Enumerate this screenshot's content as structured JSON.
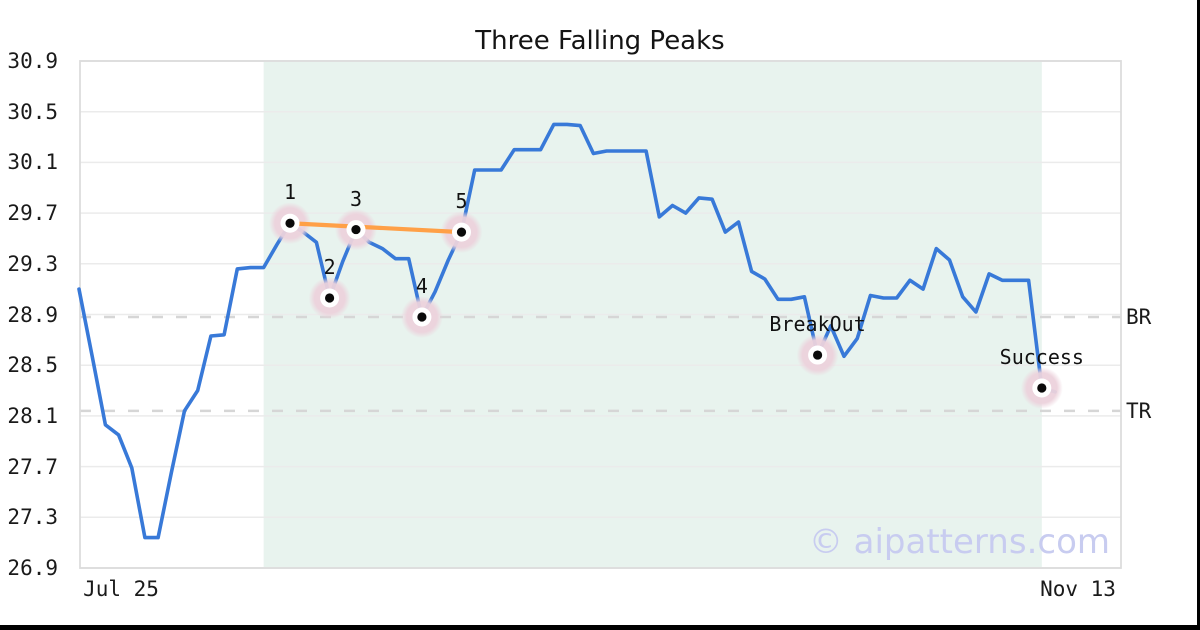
{
  "page": {
    "watermark": "© aipatterns.com"
  },
  "chart_data": {
    "type": "line",
    "title": "Three Falling Peaks",
    "xlabel": "",
    "ylabel": "",
    "grid": "horizontal",
    "x_axis": {
      "tick_labels": [
        "Jul 25",
        "Nov 13"
      ]
    },
    "y_axis": {
      "range": [
        26.9,
        30.9
      ],
      "ticks": [
        26.9,
        27.3,
        27.7,
        28.1,
        28.5,
        28.9,
        29.3,
        29.7,
        30.1,
        30.5,
        30.9
      ]
    },
    "series": [
      {
        "name": "price",
        "color": "#3879d8",
        "values": [
          29.1,
          28.57,
          28.03,
          27.95,
          27.69,
          27.14,
          27.14,
          27.65,
          28.14,
          28.3,
          28.73,
          28.74,
          29.26,
          29.27,
          29.27,
          29.45,
          29.62,
          29.55,
          29.47,
          29.03,
          29.32,
          29.57,
          29.47,
          29.42,
          29.34,
          29.34,
          28.88,
          29.08,
          29.33,
          29.55,
          30.04,
          30.04,
          30.04,
          30.2,
          30.2,
          30.2,
          30.4,
          30.4,
          30.39,
          30.17,
          30.19,
          30.19,
          30.19,
          30.19,
          29.67,
          29.76,
          29.7,
          29.82,
          29.81,
          29.55,
          29.63,
          29.24,
          29.18,
          29.02,
          29.02,
          29.04,
          28.58,
          28.81,
          28.57,
          28.71,
          29.05,
          29.03,
          29.03,
          29.17,
          29.1,
          29.42,
          29.33,
          29.04,
          28.92,
          29.22,
          29.17,
          29.17,
          29.17,
          28.32,
          28.29
        ]
      }
    ],
    "markers": [
      {
        "index": 16,
        "label": "1"
      },
      {
        "index": 19,
        "label": "2"
      },
      {
        "index": 21,
        "label": "3"
      },
      {
        "index": 26,
        "label": "4"
      },
      {
        "index": 29,
        "label": "5"
      },
      {
        "index": 56,
        "label": "BreakOut"
      },
      {
        "index": 73,
        "label": "Success"
      }
    ],
    "trendline": {
      "from_index": 16,
      "to_index": 29,
      "color": "#ffa047"
    },
    "hlines": [
      {
        "label": "BR",
        "value": 28.88
      },
      {
        "label": "TR",
        "value": 28.14
      }
    ],
    "shaded_region": {
      "from_index": 14,
      "to_index": 73,
      "color": "#e8f3ee"
    },
    "marker_style": {
      "halo_color": "#ecd2dc",
      "ring_color": "#ffffff",
      "dot_color": "#0a0a0a"
    }
  }
}
